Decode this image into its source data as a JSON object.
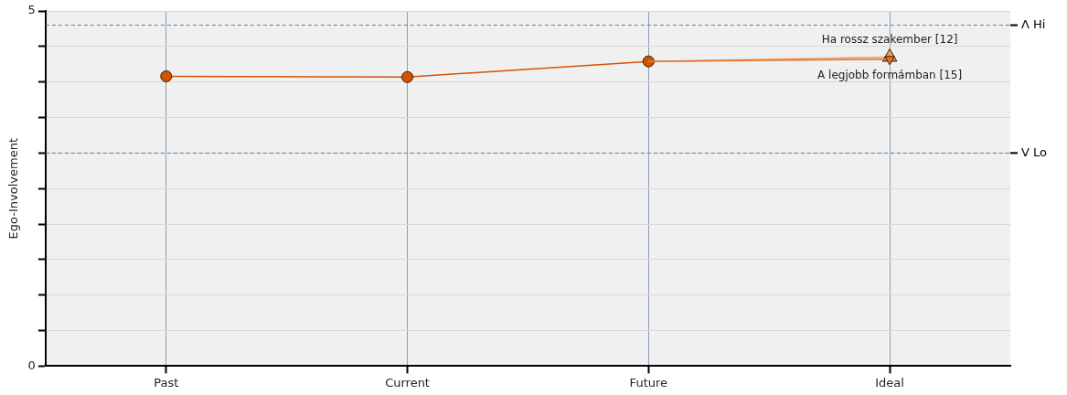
{
  "chart_data": {
    "type": "line",
    "ylabel": "Ego-Involvement",
    "categories": [
      "Past",
      "Current",
      "Future",
      "Ideal"
    ],
    "series": [
      {
        "color": "#d35400",
        "values": [
          4.08,
          4.07,
          4.29,
          null
        ],
        "marker": "circle"
      },
      {
        "color": "#eb9a66",
        "values": [
          null,
          null,
          4.29,
          4.35
        ],
        "marker": "triangle"
      },
      {
        "color": "#e0732e",
        "values": [
          null,
          null,
          4.29,
          4.32
        ],
        "marker": "triangle"
      }
    ],
    "ylim": [
      0,
      5
    ],
    "yticks": [
      0,
      {
        "value": 0.5,
        "label": null
      },
      {
        "value": 1,
        "label": null
      },
      {
        "value": 1.5,
        "label": null
      },
      {
        "value": 2,
        "label": null
      },
      {
        "value": 2.5,
        "label": null
      },
      {
        "value": 3,
        "label": null
      },
      {
        "value": 3.5,
        "label": null
      },
      {
        "value": 4,
        "label": null
      },
      {
        "value": 4.5,
        "label": null
      },
      5
    ],
    "ref_lines": [
      {
        "axis": "y",
        "value": 4.8,
        "label": "Λ Hi",
        "color": "#4a7fb5",
        "line_style": "dashed"
      },
      {
        "axis": "y",
        "value": 3,
        "label": "V Lo",
        "color": "#4a7fb5",
        "line_style": "dashed"
      }
    ],
    "annotations": [
      {
        "text": "Ha rossz szakember [12]",
        "x": "Ideal",
        "y": 4.35
      },
      {
        "text": "A legjobb formámban [15]",
        "x": "Ideal",
        "y": 4.32
      }
    ],
    "grid": true,
    "legend": false
  }
}
